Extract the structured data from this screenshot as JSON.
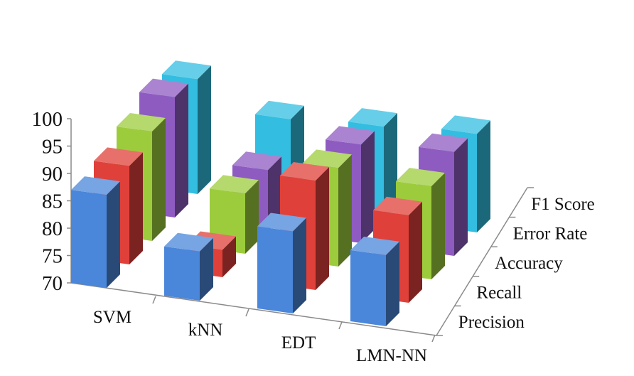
{
  "chart_data": {
    "type": "bar",
    "subtype": "3d-column",
    "title": "",
    "xlabel": "",
    "ylabel": "",
    "ylim": [
      70,
      100
    ],
    "yticks": [
      70,
      75,
      80,
      85,
      90,
      95,
      100
    ],
    "grid": false,
    "categories": [
      "SVM",
      "kNN",
      "EDT",
      "LMN-NN"
    ],
    "series": [
      {
        "name": "Precision",
        "color": "#4a86d9",
        "values": [
          87,
          79,
          85,
          83
        ]
      },
      {
        "name": "Recall",
        "color": "#e0403a",
        "values": [
          88,
          75,
          90,
          86
        ]
      },
      {
        "name": "Accuracy",
        "color": "#9ccc3c",
        "values": [
          90,
          81,
          88,
          87
        ]
      },
      {
        "name": "Error Rate",
        "color": "#8e5bc0",
        "values": [
          92,
          81,
          88,
          89
        ]
      },
      {
        "name": "F1 Score",
        "color": "#33bde0",
        "values": [
          91,
          86,
          87,
          88
        ]
      }
    ]
  }
}
